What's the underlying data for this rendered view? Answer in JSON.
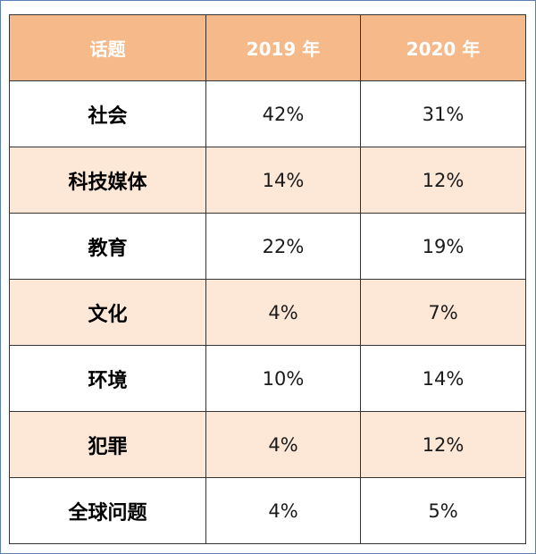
{
  "chart_data": {
    "type": "table",
    "columns": [
      "话题",
      "2019 年",
      "2020 年"
    ],
    "rows": [
      [
        "社会",
        "42%",
        "31%"
      ],
      [
        "科技媒体",
        "14%",
        "12%"
      ],
      [
        "教育",
        "22%",
        "19%"
      ],
      [
        "文化",
        "4%",
        "7%"
      ],
      [
        "环境",
        "10%",
        "14%"
      ],
      [
        "犯罪",
        "4%",
        "12%"
      ],
      [
        "全球问题",
        "4%",
        "5%"
      ]
    ]
  },
  "colors": {
    "header_bg": "#f5b98a",
    "header_text": "#ffffff",
    "stripe_bg": "#fde8d8",
    "border": "#333333",
    "frame": "#5b7fb3"
  }
}
